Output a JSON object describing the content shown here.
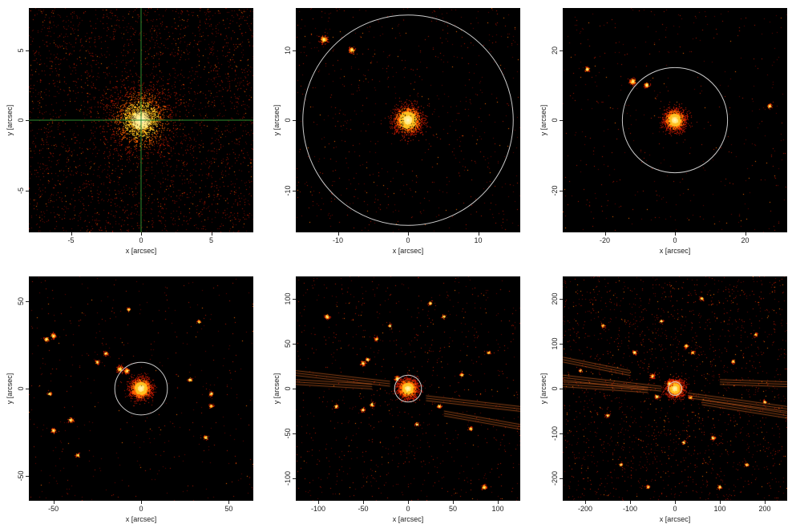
{
  "panels": [
    {
      "id": "p1",
      "xlabel": "x [arcsec]",
      "ylabel": "y [arcsec]",
      "range": [
        -8,
        8
      ],
      "xticks": [
        "-5",
        "0",
        "5"
      ],
      "xtick_values": [
        -5,
        0,
        5
      ],
      "yticks": [
        "-5",
        "0",
        "5"
      ],
      "ytick_values": [
        -5,
        0,
        5
      ],
      "overlay": "crosshair",
      "overlay_color": "#2e8b2e",
      "sources": [
        [
          0,
          0,
          1.0
        ]
      ],
      "noise": 0.35,
      "spread": 1.6
    },
    {
      "id": "p2",
      "xlabel": "x [arcsec]",
      "ylabel": "y [arcsec]",
      "range": [
        -16,
        16
      ],
      "xticks": [
        "-10",
        "0",
        "10"
      ],
      "xtick_values": [
        -10,
        0,
        10
      ],
      "yticks": [
        "-10",
        "0",
        "10"
      ],
      "ytick_values": [
        -10,
        0,
        10
      ],
      "overlay": "circle",
      "circle_radius": 15,
      "overlay_color": "#cccccc",
      "sources": [
        [
          0,
          0,
          1.0
        ],
        [
          -12,
          11.5,
          0.7
        ],
        [
          -8,
          10,
          0.5
        ]
      ],
      "noise": 0.08,
      "spread": 0.7
    },
    {
      "id": "p3",
      "xlabel": "x [arcsec]",
      "ylabel": "y [arcsec]",
      "range": [
        -32,
        32
      ],
      "xticks": [
        "-20",
        "0",
        "20"
      ],
      "xtick_values": [
        -20,
        0,
        20
      ],
      "yticks": [
        "-20",
        "0",
        "20"
      ],
      "ytick_values": [
        -20,
        0,
        20
      ],
      "overlay": "circle",
      "circle_radius": 15,
      "overlay_color": "#cccccc",
      "sources": [
        [
          0,
          0,
          1.0
        ],
        [
          -12,
          11,
          0.7
        ],
        [
          -8,
          10,
          0.5
        ],
        [
          -25,
          14.5,
          0.4
        ],
        [
          27,
          4,
          0.3
        ]
      ],
      "noise": 0.05,
      "spread": 0.5
    },
    {
      "id": "p4",
      "xlabel": "x [arcsec]",
      "ylabel": "y [arcsec]",
      "range": [
        -64,
        64
      ],
      "xticks": [
        "-50",
        "0",
        "50"
      ],
      "xtick_values": [
        -50,
        0,
        50
      ],
      "yticks": [
        "-50",
        "0",
        "50"
      ],
      "ytick_values": [
        -50,
        0,
        50
      ],
      "overlay": "circle",
      "circle_radius": 15,
      "overlay_color": "#cccccc",
      "sources": [
        [
          0,
          0,
          1.0
        ],
        [
          -12,
          11,
          0.7
        ],
        [
          -8,
          10,
          0.5
        ],
        [
          -50,
          30,
          0.5
        ],
        [
          -54,
          28,
          0.4
        ],
        [
          -40,
          -18,
          0.5
        ],
        [
          -50,
          -24,
          0.4
        ],
        [
          -52,
          -3,
          0.3
        ],
        [
          -25,
          15,
          0.3
        ],
        [
          -20,
          20,
          0.3
        ],
        [
          40,
          -3,
          0.35
        ],
        [
          40,
          -10,
          0.3
        ],
        [
          37,
          -28,
          0.3
        ],
        [
          28,
          5,
          0.3
        ],
        [
          -36,
          -38,
          0.25
        ],
        [
          33,
          38,
          0.2
        ],
        [
          -7,
          45,
          0.2
        ]
      ],
      "noise": 0.05,
      "spread": 0.5
    },
    {
      "id": "p5",
      "xlabel": "x [arcsec]",
      "ylabel": "y [arcsec]",
      "range": [
        -125,
        125
      ],
      "xticks": [
        "-100",
        "-50",
        "0",
        "50",
        "100"
      ],
      "xtick_values": [
        -100,
        -50,
        0,
        50,
        100
      ],
      "yticks": [
        "-100",
        "-50",
        "0",
        "50",
        "100"
      ],
      "ytick_values": [
        -100,
        -50,
        0,
        50,
        100
      ],
      "overlay": "circle",
      "circle_radius": 15,
      "overlay_color": "#cccccc",
      "sources": [
        [
          0,
          0,
          1.0
        ],
        [
          -12,
          11,
          0.6
        ],
        [
          -50,
          28,
          0.4
        ],
        [
          -45,
          32,
          0.35
        ],
        [
          -40,
          -18,
          0.4
        ],
        [
          -50,
          -24,
          0.3
        ],
        [
          85,
          -110,
          0.5
        ],
        [
          -90,
          80,
          0.4
        ],
        [
          25,
          95,
          0.3
        ],
        [
          40,
          80,
          0.3
        ],
        [
          35,
          -20,
          0.3
        ],
        [
          -35,
          55,
          0.25
        ],
        [
          70,
          -45,
          0.25
        ],
        [
          -80,
          -20,
          0.25
        ],
        [
          10,
          -40,
          0.25
        ],
        [
          90,
          40,
          0.2
        ],
        [
          -20,
          70,
          0.2
        ],
        [
          60,
          15,
          0.25
        ]
      ],
      "streaks": [
        [
          -125,
          20,
          -20,
          8
        ],
        [
          20,
          -8,
          125,
          -20
        ],
        [
          -125,
          10,
          -40,
          5
        ],
        [
          40,
          -25,
          125,
          -40
        ]
      ],
      "noise": 0.1,
      "spread": 0.45
    },
    {
      "id": "p6",
      "xlabel": "x [arcsec]",
      "ylabel": "y [arcsec]",
      "range": [
        -250,
        250
      ],
      "xticks": [
        "-200",
        "-100",
        "0",
        "100",
        "200"
      ],
      "xtick_values": [
        -200,
        -100,
        0,
        100,
        200
      ],
      "yticks": [
        "-200",
        "-100",
        "0",
        "100",
        "200"
      ],
      "ytick_values": [
        -200,
        -100,
        0,
        100,
        200
      ],
      "overlay": "circle",
      "circle_radius": 15,
      "overlay_color": "#cccccc",
      "sources": [
        [
          0,
          0,
          1.0
        ],
        [
          -12,
          11,
          0.6
        ],
        [
          -50,
          28,
          0.4
        ],
        [
          -40,
          -18,
          0.4
        ],
        [
          85,
          -110,
          0.4
        ],
        [
          -90,
          80,
          0.35
        ],
        [
          25,
          95,
          0.3
        ],
        [
          40,
          80,
          0.3
        ],
        [
          35,
          -20,
          0.3
        ],
        [
          130,
          60,
          0.3
        ],
        [
          -150,
          -60,
          0.3
        ],
        [
          -160,
          140,
          0.3
        ],
        [
          160,
          -170,
          0.3
        ],
        [
          200,
          -30,
          0.25
        ],
        [
          -210,
          40,
          0.25
        ],
        [
          60,
          200,
          0.25
        ],
        [
          -60,
          -220,
          0.25
        ],
        [
          100,
          -220,
          0.3
        ],
        [
          -120,
          -170,
          0.25
        ],
        [
          180,
          120,
          0.25
        ],
        [
          -30,
          150,
          0.25
        ],
        [
          20,
          -120,
          0.25
        ]
      ],
      "streaks": [
        [
          -250,
          30,
          -30,
          5
        ],
        [
          30,
          -10,
          250,
          -40
        ],
        [
          -250,
          15,
          -60,
          2
        ],
        [
          60,
          -25,
          250,
          -55
        ],
        [
          -250,
          70,
          -100,
          40
        ],
        [
          100,
          20,
          250,
          15
        ]
      ],
      "noise": 0.22,
      "spread": 0.4
    }
  ]
}
